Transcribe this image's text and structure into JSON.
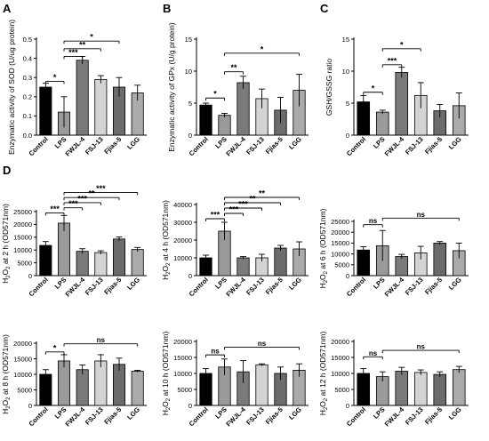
{
  "figure": {
    "categories": [
      "Control",
      "LPS",
      "FWJL-4",
      "FSJ-13",
      "Fjias-5",
      "LGG"
    ],
    "bar_colors": [
      "#000000",
      "#9a9a9a",
      "#7a7a7a",
      "#d4d4d4",
      "#6b6b6b",
      "#aaaaaa"
    ]
  },
  "chart_data": [
    {
      "panel": "A",
      "type": "bar",
      "ylabel": "Enzymatic activity of SOD (U/ug protein)",
      "ylim": [
        0,
        0.5
      ],
      "yticks": [
        0.0,
        0.1,
        0.2,
        0.3,
        0.4,
        0.5
      ],
      "ytick_labels": [
        "0.0",
        "0.1",
        "0.2",
        "0.3",
        "0.4",
        "0.5"
      ],
      "categories": [
        "Control",
        "LPS",
        "FWJL-4",
        "FSJ-13",
        "Fjias-5",
        "LGG"
      ],
      "values": [
        0.25,
        0.12,
        0.39,
        0.29,
        0.25,
        0.22
      ],
      "errors": [
        0.02,
        0.08,
        0.02,
        0.02,
        0.05,
        0.04
      ],
      "brackets": [
        {
          "from": 0,
          "to": 1,
          "label": "*",
          "y": 0.28
        },
        {
          "from": 1,
          "to": 2,
          "label": "***",
          "y": 0.41
        },
        {
          "from": 1,
          "to": 3,
          "label": "**",
          "y": 0.45
        },
        {
          "from": 1,
          "to": 4,
          "label": "*",
          "y": 0.49
        }
      ]
    },
    {
      "panel": "B",
      "type": "bar",
      "ylabel": "Enzymatic activity of GPx (U/g protein)",
      "ylim": [
        0,
        15
      ],
      "yticks": [
        0,
        5,
        10,
        15
      ],
      "ytick_labels": [
        "0",
        "5",
        "10",
        "15"
      ],
      "categories": [
        "Control",
        "LPS",
        "FWJL-4",
        "FSJ-13",
        "Fjias-5",
        "LGG"
      ],
      "values": [
        4.7,
        3.1,
        8.2,
        5.7,
        3.9,
        7.0
      ],
      "errors": [
        0.3,
        0.3,
        1.0,
        1.5,
        2.0,
        2.5
      ],
      "brackets": [
        {
          "from": 0,
          "to": 1,
          "label": "*",
          "y": 5.8
        },
        {
          "from": 1,
          "to": 2,
          "label": "**",
          "y": 9.9
        },
        {
          "from": 1,
          "to": 5,
          "label": "*",
          "y": 12.8
        }
      ]
    },
    {
      "panel": "C",
      "type": "bar",
      "ylabel": "GSH/GSSG ratio",
      "ylim": [
        0,
        15
      ],
      "yticks": [
        0,
        5,
        10,
        15
      ],
      "ytick_labels": [
        "0",
        "5",
        "10",
        "15"
      ],
      "categories": [
        "Control",
        "LPS",
        "FWJL-4",
        "FSJ-13",
        "Fjias-5",
        "LGG"
      ],
      "values": [
        5.2,
        3.6,
        9.8,
        6.2,
        3.8,
        4.6
      ],
      "errors": [
        1.0,
        0.3,
        0.8,
        2.0,
        1.0,
        2.0
      ],
      "brackets": [
        {
          "from": 0,
          "to": 1,
          "label": "*",
          "y": 6.7
        },
        {
          "from": 1,
          "to": 2,
          "label": "***",
          "y": 11.0
        },
        {
          "from": 1,
          "to": 3,
          "label": "*",
          "y": 13.5
        }
      ]
    },
    {
      "panel": "D",
      "type": "bar",
      "ylabel": "H2O2 at 2 h (OD571nm)",
      "ylim": [
        0,
        25000
      ],
      "yticks": [
        0,
        5000,
        10000,
        15000,
        20000,
        25000
      ],
      "ytick_labels": [
        "0",
        "5000",
        "10000",
        "15000",
        "20000",
        "25000"
      ],
      "categories": [
        "Control",
        "LPS",
        "FWJL-4",
        "FSJ-13",
        "Fjias-5",
        "LGG"
      ],
      "values": [
        11800,
        20500,
        9500,
        9000,
        14300,
        10200
      ],
      "errors": [
        1500,
        3000,
        1000,
        700,
        800,
        800
      ],
      "brackets": [
        {
          "from": 0,
          "to": 1,
          "label": "***",
          "y": 24500
        },
        {
          "from": 1,
          "to": 2,
          "label": "***",
          "y": 26500
        },
        {
          "from": 1,
          "to": 3,
          "label": "***",
          "y": 28500
        },
        {
          "from": 1,
          "to": 4,
          "label": "**",
          "y": 30500
        },
        {
          "from": 1,
          "to": 5,
          "label": "***",
          "y": 32500
        }
      ]
    },
    {
      "panel": "",
      "type": "bar",
      "ylabel": "H2O2 at 4 h (OD571nm)",
      "ylim": [
        0,
        40000
      ],
      "yticks": [
        0,
        10000,
        20000,
        30000,
        40000
      ],
      "ytick_labels": [
        "0",
        "10000",
        "20000",
        "30000",
        "40000"
      ],
      "categories": [
        "Control",
        "LPS",
        "FWJL-4",
        "FSJ-13",
        "Fjias-5",
        "LGG"
      ],
      "values": [
        10000,
        25000,
        10000,
        10000,
        15500,
        15000
      ],
      "errors": [
        1500,
        5000,
        700,
        2000,
        1500,
        4000
      ],
      "brackets": [
        {
          "from": 0,
          "to": 1,
          "label": "***",
          "y": 32000
        },
        {
          "from": 1,
          "to": 2,
          "label": "***",
          "y": 35000
        },
        {
          "from": 1,
          "to": 3,
          "label": "***",
          "y": 38000
        },
        {
          "from": 1,
          "to": 4,
          "label": "**",
          "y": 41000
        },
        {
          "from": 1,
          "to": 5,
          "label": "**",
          "y": 44000
        }
      ]
    },
    {
      "panel": "",
      "type": "bar",
      "ylabel": "H2O2 at 6 h (OD571nm)",
      "ylim": [
        0,
        25000
      ],
      "yticks": [
        0,
        5000,
        10000,
        15000,
        20000,
        25000
      ],
      "ytick_labels": [
        "0",
        "5000",
        "10000",
        "15000",
        "20000",
        "25000"
      ],
      "categories": [
        "Control",
        "LPS",
        "FWJL-4",
        "FSJ-13",
        "Fjias-5",
        "LGG"
      ],
      "values": [
        11800,
        13800,
        8800,
        10500,
        15000,
        11500
      ],
      "errors": [
        1500,
        7000,
        1000,
        3000,
        700,
        3500
      ],
      "brackets": [
        {
          "from": 0,
          "to": 1,
          "label": "ns",
          "y": 23500
        },
        {
          "from": 1,
          "to": 5,
          "label": "ns",
          "y": 26500
        }
      ]
    },
    {
      "panel": "",
      "type": "bar",
      "ylabel": "H2O2 at 8 h (OD571nm)",
      "ylim": [
        0,
        20000
      ],
      "yticks": [
        0,
        5000,
        10000,
        15000,
        20000
      ],
      "ytick_labels": [
        "0",
        "5000",
        "10000",
        "15000",
        "20000"
      ],
      "categories": [
        "Control",
        "LPS",
        "FWJL-4",
        "FSJ-13",
        "Fjias-5",
        "LGG"
      ],
      "values": [
        10000,
        14300,
        11500,
        14300,
        13200,
        11000
      ],
      "errors": [
        1500,
        2000,
        1500,
        2000,
        2000,
        300
      ],
      "brackets": [
        {
          "from": 0,
          "to": 1,
          "label": "*",
          "y": 17200
        },
        {
          "from": 1,
          "to": 5,
          "label": "ns",
          "y": 19800
        }
      ]
    },
    {
      "panel": "",
      "type": "bar",
      "ylabel": "H2O2 at 10 h (OD571nm)",
      "ylim": [
        0,
        20000
      ],
      "yticks": [
        0,
        5000,
        10000,
        15000,
        20000
      ],
      "ytick_labels": [
        "0",
        "5000",
        "10000",
        "15000",
        "20000"
      ],
      "categories": [
        "Control",
        "LPS",
        "FWJL-4",
        "FSJ-13",
        "Fjias-5",
        "LGG"
      ],
      "values": [
        10000,
        12000,
        10500,
        12700,
        10000,
        11000
      ],
      "errors": [
        1500,
        2500,
        3500,
        300,
        2000,
        2000
      ],
      "brackets": [
        {
          "from": 0,
          "to": 1,
          "label": "ns",
          "y": 15800
        },
        {
          "from": 1,
          "to": 5,
          "label": "ns",
          "y": 18200
        }
      ]
    },
    {
      "panel": "",
      "type": "bar",
      "ylabel": "H2O2 at 12 h (OD571nm)",
      "ylim": [
        0,
        20000
      ],
      "yticks": [
        0,
        5000,
        10000,
        15000,
        20000
      ],
      "ytick_labels": [
        "0",
        "5000",
        "10000",
        "15000",
        "20000"
      ],
      "categories": [
        "Control",
        "LPS",
        "FWJL-4",
        "FSJ-13",
        "Fjias-5",
        "LGG"
      ],
      "values": [
        10000,
        9000,
        10700,
        10300,
        9700,
        11200
      ],
      "errors": [
        1500,
        1500,
        1200,
        800,
        800,
        1000
      ],
      "brackets": [
        {
          "from": 0,
          "to": 1,
          "label": "ns",
          "y": 15200
        },
        {
          "from": 1,
          "to": 5,
          "label": "ns",
          "y": 17200
        }
      ]
    }
  ]
}
